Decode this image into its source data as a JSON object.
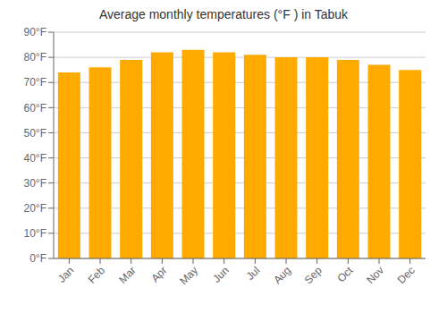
{
  "chart_data": {
    "type": "bar",
    "title": "Average monthly temperatures (°F ) in Tabuk",
    "categories": [
      "Jan",
      "Feb",
      "Mar",
      "Apr",
      "May",
      "Jun",
      "Jul",
      "Aug",
      "Sep",
      "Oct",
      "Nov",
      "Dec"
    ],
    "values": [
      74,
      76,
      79,
      82,
      83,
      82,
      81,
      80,
      80,
      79,
      77,
      75
    ],
    "color": "#FFAA00",
    "ylim": [
      0,
      90
    ],
    "yticks": [
      {
        "value": 0,
        "label": "0°F"
      },
      {
        "value": 10,
        "label": "10°F"
      },
      {
        "value": 20,
        "label": "20°F"
      },
      {
        "value": 30,
        "label": "30°F"
      },
      {
        "value": 40,
        "label": "40°F"
      },
      {
        "value": 50,
        "label": "50°F"
      },
      {
        "value": 60,
        "label": "60°F"
      },
      {
        "value": 70,
        "label": "70°F"
      },
      {
        "value": 80,
        "label": "80°F"
      },
      {
        "value": 90,
        "label": "90°F"
      }
    ],
    "grid": true
  }
}
